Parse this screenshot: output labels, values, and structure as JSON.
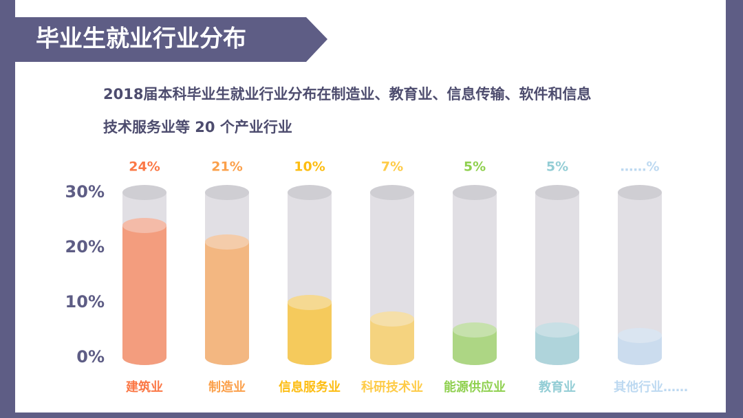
{
  "chart_data": {
    "type": "cylinder-bar",
    "title": "毕业生就业行业分布",
    "subtitle_lines": [
      "2018届本科毕业生就业行业分布在制造业、教育业、信息传输、软件和信息",
      "技术服务业等 20 个产业行业"
    ],
    "categories": [
      "建筑业",
      "制造业",
      "信息服务业",
      "科研技术业",
      "能源供应业",
      "教育业",
      "其他行业……"
    ],
    "values": [
      24,
      21,
      10,
      7,
      5,
      5,
      4
    ],
    "value_labels": [
      "24%",
      "21%",
      "10%",
      "7%",
      "5%",
      "5%",
      "……%"
    ],
    "colors": [
      "#fb7846",
      "#fba04b",
      "#fdbd12",
      "#fecb47",
      "#8fd04f",
      "#93cdd5",
      "#bdd9f1"
    ],
    "ylim": [
      0,
      30
    ],
    "yticks": [
      {
        "value": 0,
        "label": "0%"
      },
      {
        "value": 10,
        "label": "10%"
      },
      {
        "value": 20,
        "label": "20%"
      },
      {
        "value": 30,
        "label": "30%"
      }
    ]
  }
}
